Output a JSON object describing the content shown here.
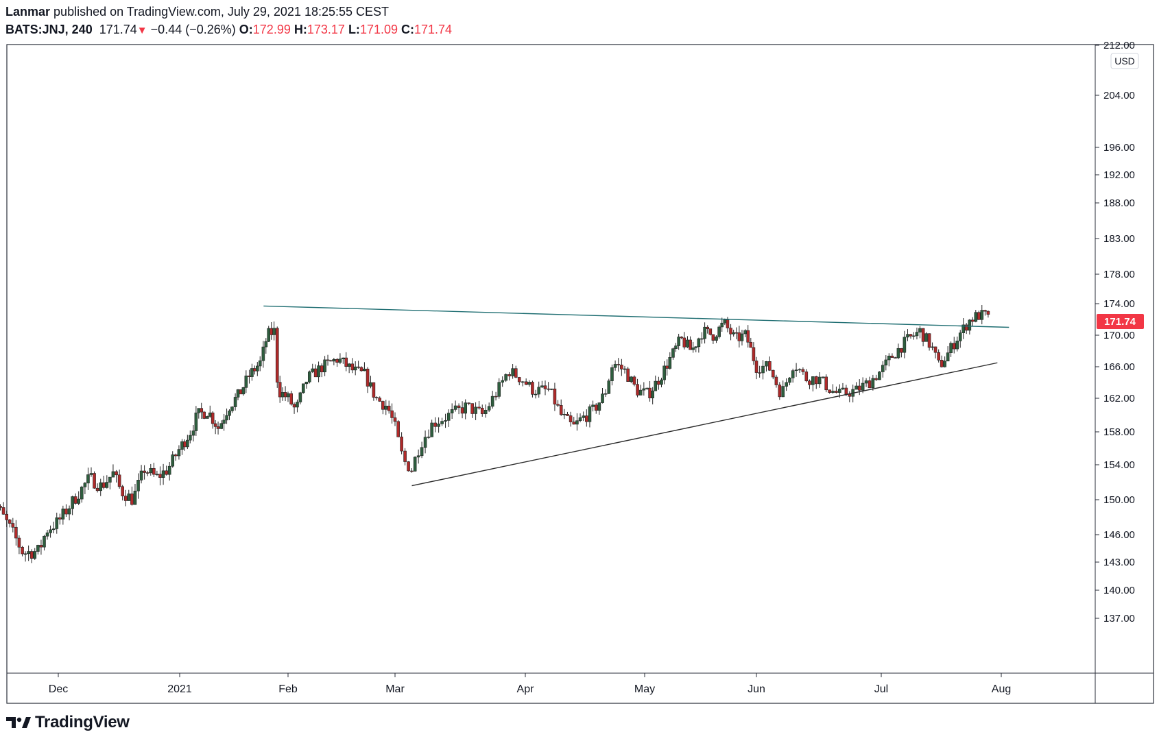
{
  "header": {
    "author": "Lanmar",
    "published_text": "published on TradingView.com, July 29, 2021 18:25:55 CEST",
    "symbol": "BATS:JNJ, 240",
    "last_price": "171.74",
    "change": "−0.44 (−0.26%)",
    "open_label": "O:",
    "open": "172.99",
    "high_label": "H:",
    "high": "173.17",
    "low_label": "L:",
    "low": "171.09",
    "close_label": "C:",
    "close": "171.74"
  },
  "logo": {
    "text": "TradingView",
    "icon": "tradingview-logo-icon"
  },
  "colors": {
    "up": "#2e5e3e",
    "down": "#b02a2a",
    "price_tag": "#f23645",
    "upper_trend": "#1f6e72",
    "lower_trend": "#2a2a2a"
  },
  "chart_data": {
    "type": "candlestick",
    "currency": "USD",
    "y_ticks": [
      212,
      204,
      196,
      192,
      188,
      183,
      178,
      174,
      170,
      166,
      162,
      158,
      154,
      150,
      146,
      143,
      140,
      137
    ],
    "x_ticks": [
      {
        "label": "Dec",
        "date": "2020-12-01"
      },
      {
        "label": "2021",
        "date": "2021-01-01"
      },
      {
        "label": "Feb",
        "date": "2021-02-01"
      },
      {
        "label": "Mar",
        "date": "2021-03-01"
      },
      {
        "label": "Apr",
        "date": "2021-04-01"
      },
      {
        "label": "May",
        "date": "2021-05-01"
      },
      {
        "label": "Jun",
        "date": "2021-06-01"
      },
      {
        "label": "Jul",
        "date": "2021-07-01"
      },
      {
        "label": "Aug",
        "date": "2021-08-01"
      }
    ],
    "last_price_label": "171.74",
    "last_price": 171.74,
    "trendlines": [
      {
        "name": "resistance",
        "from": {
          "date": "2021-01-25",
          "price": 173.7
        },
        "to": {
          "date": "2021-08-03",
          "price": 171.0
        }
      },
      {
        "name": "support",
        "from": {
          "date": "2021-03-05",
          "price": 151.6
        },
        "to": {
          "date": "2021-07-31",
          "price": 166.5
        }
      }
    ],
    "price_path": [
      [
        "2020-11-13",
        151.0
      ],
      [
        "2020-11-17",
        148.0
      ],
      [
        "2020-11-19",
        146.5
      ],
      [
        "2020-11-22",
        144.0
      ],
      [
        "2020-11-26",
        144.2
      ],
      [
        "2020-11-28",
        146.5
      ],
      [
        "2020-12-01",
        147.5
      ],
      [
        "2020-12-05",
        150.0
      ],
      [
        "2020-12-09",
        152.5
      ],
      [
        "2020-12-12",
        151.5
      ],
      [
        "2020-12-15",
        153.0
      ],
      [
        "2020-12-17",
        151.0
      ],
      [
        "2020-12-20",
        150.0
      ],
      [
        "2020-12-23",
        153.5
      ],
      [
        "2020-12-26",
        152.5
      ],
      [
        "2020-12-29",
        153.5
      ],
      [
        "2021-01-01",
        156.0
      ],
      [
        "2021-01-04",
        158.0
      ],
      [
        "2021-01-06",
        160.0
      ],
      [
        "2021-01-09",
        160.5
      ],
      [
        "2021-01-12",
        158.5
      ],
      [
        "2021-01-15",
        161.0
      ],
      [
        "2021-01-18",
        162.5
      ],
      [
        "2021-01-21",
        165.0
      ],
      [
        "2021-01-24",
        166.5
      ],
      [
        "2021-01-26",
        170.0
      ],
      [
        "2021-01-28",
        170.5
      ],
      [
        "2021-01-29",
        163.0
      ],
      [
        "2021-02-01",
        162.0
      ],
      [
        "2021-02-03",
        160.5
      ],
      [
        "2021-02-06",
        164.5
      ],
      [
        "2021-02-10",
        166.0
      ],
      [
        "2021-02-14",
        167.0
      ],
      [
        "2021-02-18",
        165.5
      ],
      [
        "2021-02-21",
        165.0
      ],
      [
        "2021-02-24",
        162.0
      ],
      [
        "2021-02-27",
        161.0
      ],
      [
        "2021-03-01",
        158.5
      ],
      [
        "2021-03-03",
        154.5
      ],
      [
        "2021-03-05",
        153.5
      ],
      [
        "2021-03-07",
        156.5
      ],
      [
        "2021-03-10",
        159.0
      ],
      [
        "2021-03-14",
        160.0
      ],
      [
        "2021-03-18",
        161.0
      ],
      [
        "2021-03-22",
        160.0
      ],
      [
        "2021-03-26",
        163.5
      ],
      [
        "2021-03-28",
        165.5
      ],
      [
        "2021-03-31",
        164.5
      ],
      [
        "2021-04-03",
        163.0
      ],
      [
        "2021-04-07",
        163.0
      ],
      [
        "2021-04-10",
        160.0
      ],
      [
        "2021-04-13",
        158.5
      ],
      [
        "2021-04-15",
        159.5
      ],
      [
        "2021-04-18",
        160.5
      ],
      [
        "2021-04-21",
        162.5
      ],
      [
        "2021-04-23",
        166.5
      ],
      [
        "2021-04-26",
        165.5
      ],
      [
        "2021-04-29",
        163.0
      ],
      [
        "2021-05-02",
        162.5
      ],
      [
        "2021-05-05",
        164.5
      ],
      [
        "2021-05-08",
        167.0
      ],
      [
        "2021-05-11",
        169.5
      ],
      [
        "2021-05-14",
        168.0
      ],
      [
        "2021-05-17",
        170.5
      ],
      [
        "2021-05-20",
        170.0
      ],
      [
        "2021-05-23",
        171.5
      ],
      [
        "2021-05-26",
        169.5
      ],
      [
        "2021-05-29",
        170.0
      ],
      [
        "2021-06-01",
        166.0
      ],
      [
        "2021-06-04",
        166.0
      ],
      [
        "2021-06-07",
        162.5
      ],
      [
        "2021-06-10",
        166.5
      ],
      [
        "2021-06-13",
        164.5
      ],
      [
        "2021-06-16",
        164.5
      ],
      [
        "2021-06-19",
        163.0
      ],
      [
        "2021-06-21",
        162.5
      ],
      [
        "2021-06-25",
        163.0
      ],
      [
        "2021-06-28",
        164.0
      ],
      [
        "2021-07-01",
        165.5
      ],
      [
        "2021-07-04",
        167.5
      ],
      [
        "2021-07-08",
        169.5
      ],
      [
        "2021-07-11",
        170.5
      ],
      [
        "2021-07-14",
        168.5
      ],
      [
        "2021-07-16",
        166.0
      ],
      [
        "2021-07-18",
        167.5
      ],
      [
        "2021-07-21",
        170.0
      ],
      [
        "2021-07-24",
        172.0
      ],
      [
        "2021-07-26",
        172.5
      ],
      [
        "2021-07-28",
        172.5
      ],
      [
        "2021-07-29",
        171.74
      ]
    ]
  }
}
